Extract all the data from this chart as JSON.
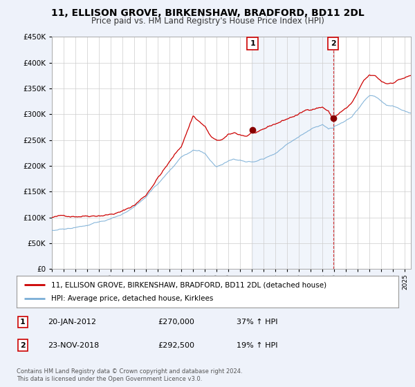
{
  "title": "11, ELLISON GROVE, BIRKENSHAW, BRADFORD, BD11 2DL",
  "subtitle": "Price paid vs. HM Land Registry's House Price Index (HPI)",
  "title_fontsize": 10,
  "subtitle_fontsize": 8.5,
  "red_label": "11, ELLISON GROVE, BIRKENSHAW, BRADFORD, BD11 2DL (detached house)",
  "blue_label": "HPI: Average price, detached house, Kirklees",
  "annotation1_label": "1",
  "annotation1_date": "20-JAN-2012",
  "annotation1_price": "£270,000",
  "annotation1_pct": "37% ↑ HPI",
  "annotation2_label": "2",
  "annotation2_date": "23-NOV-2018",
  "annotation2_price": "£292,500",
  "annotation2_pct": "19% ↑ HPI",
  "footer": "Contains HM Land Registry data © Crown copyright and database right 2024.\nThis data is licensed under the Open Government Licence v3.0.",
  "ylim": [
    0,
    450000
  ],
  "xlim_start": 1995.0,
  "xlim_end": 2025.5,
  "background_color": "#eef2fa",
  "plot_bg_color": "#ffffff",
  "shade_color": "#d8e4f5",
  "red_color": "#cc0000",
  "blue_color": "#7aaed6",
  "sale1_x": 2012.05,
  "sale1_y": 270000,
  "sale2_x": 2018.9,
  "sale2_y": 292500
}
